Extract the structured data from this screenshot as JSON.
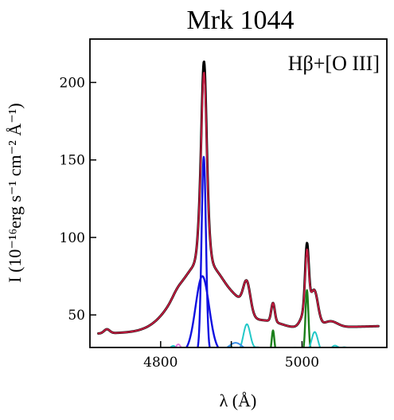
{
  "chart_data": {
    "type": "line",
    "title": "Mrk 1044",
    "annotation": "Hβ+[O III]",
    "xlabel": "λ (Å)",
    "ylabel": "I (10⁻¹⁶erg s⁻¹ cm⁻² Å⁻¹)",
    "xlim": [
      4700,
      5120
    ],
    "ylim": [
      29,
      228
    ],
    "xticks": [
      4800,
      4900,
      5000
    ],
    "xtick_labels": [
      "4800",
      "",
      "5000"
    ],
    "yticks": [
      50,
      100,
      150,
      200
    ],
    "ytick_labels": [
      "50",
      "100",
      "150",
      "200"
    ],
    "grid": false,
    "legend": "none",
    "series": [
      {
        "color": "#000000",
        "width": 3,
        "baseline": 0,
        "linear": [
          38,
          0.012
        ],
        "components": [
          [
            4724,
            2.6,
            4
          ],
          [
            4823,
            1.8,
            6
          ],
          [
            4860,
            45,
            35
          ],
          [
            4861,
            77,
            5
          ],
          [
            4861.5,
            52,
            3
          ],
          [
            4922,
            19,
            5
          ],
          [
            4912,
            4,
            10
          ],
          [
            4959,
            12,
            2.5
          ],
          [
            5007,
            40,
            2.5
          ],
          [
            5007,
            13,
            7
          ],
          [
            5018,
            20,
            5
          ],
          [
            5040,
            4,
            10
          ],
          [
            4955,
            4,
            18
          ]
        ]
      },
      {
        "color": "#c21b3f",
        "width": 2,
        "baseline": 0,
        "linear": [
          38,
          0.012
        ],
        "components": [
          [
            4724,
            2.6,
            4
          ],
          [
            4823,
            1.8,
            6
          ],
          [
            4860,
            45,
            35
          ],
          [
            4861,
            76,
            5
          ],
          [
            4861.5,
            46,
            3
          ],
          [
            4922,
            19,
            5
          ],
          [
            4912,
            4,
            10
          ],
          [
            4959,
            12,
            2.5
          ],
          [
            5007,
            36,
            2.5
          ],
          [
            5007,
            13,
            7
          ],
          [
            5018,
            20,
            5
          ],
          [
            5040,
            4,
            10
          ],
          [
            4955,
            4,
            18
          ]
        ]
      },
      {
        "color": "#1010e0",
        "width": 2.4,
        "baseline": 0,
        "linear": [
          0,
          0
        ],
        "components": [
          [
            4859,
            49,
            9.5
          ]
        ]
      },
      {
        "color": "#1010e0",
        "width": 2.4,
        "baseline": 0,
        "linear": [
          0,
          0
        ],
        "components": [
          [
            4861,
            126,
            3.1
          ]
        ]
      },
      {
        "color": "#1a7f1a",
        "width": 2.4,
        "baseline": 0,
        "linear": [
          0,
          0
        ],
        "components": [
          [
            4959,
            14,
            1.8
          ]
        ]
      },
      {
        "color": "#1a7f1a",
        "width": 2.4,
        "baseline": 0,
        "linear": [
          0,
          0
        ],
        "components": [
          [
            5007,
            40,
            2.1
          ]
        ]
      },
      {
        "color": "#22c8c8",
        "width": 2,
        "baseline": 0,
        "linear": [
          0,
          0
        ],
        "components": [
          [
            4712,
            3,
            5
          ],
          [
            4728,
            2,
            5
          ],
          [
            4800,
            3,
            6
          ],
          [
            4818,
            4,
            5
          ],
          [
            4874,
            3,
            6
          ],
          [
            4898,
            4,
            5
          ],
          [
            4922,
            18,
            5
          ],
          [
            4938,
            3,
            5
          ],
          [
            4990,
            3,
            5
          ],
          [
            5018,
            13,
            4.5
          ],
          [
            5046,
            4,
            5
          ],
          [
            5060,
            3,
            6
          ],
          [
            5075,
            2,
            6
          ],
          [
            5090,
            2,
            6
          ]
        ]
      },
      {
        "color": "#3a8fe8",
        "width": 2,
        "baseline": 0,
        "linear": [
          0,
          0
        ],
        "components": [
          [
            4906,
            6,
            10
          ],
          [
            5050,
            3,
            10
          ]
        ]
      },
      {
        "color": "#e078e0",
        "width": 2,
        "baseline": 0,
        "linear": [
          0,
          0
        ],
        "components": [
          [
            4825,
            5,
            4
          ],
          [
            4936,
            2,
            6
          ],
          [
            5012,
            1.5,
            5
          ]
        ]
      }
    ]
  }
}
